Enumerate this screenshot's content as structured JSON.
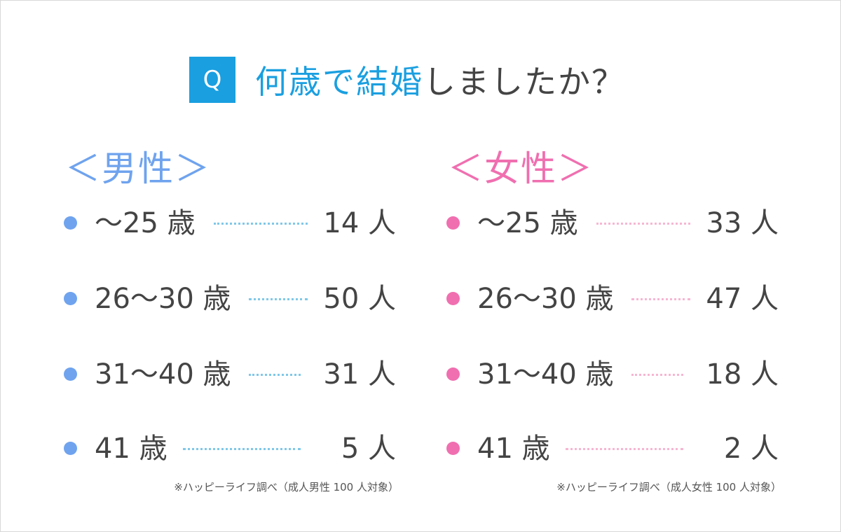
{
  "question": {
    "badge": "Q",
    "accent": "何歳で結婚",
    "rest": "しましたか？"
  },
  "colors": {
    "male": "#6fa3ee",
    "female": "#f06fb0",
    "question_accent": "#1a9fe0"
  },
  "male": {
    "header": "＜男性＞",
    "rows": [
      {
        "age": "〜25 歳",
        "count": "14 人"
      },
      {
        "age": "26〜30 歳",
        "count": "50 人"
      },
      {
        "age": "31〜40 歳",
        "count": "31 人"
      },
      {
        "age": "41 歳",
        "count": "5 人"
      }
    ],
    "note": "※ハッピーライフ調べ（成人男性 100 人対象）"
  },
  "female": {
    "header": "＜女性＞",
    "rows": [
      {
        "age": "〜25 歳",
        "count": "33 人"
      },
      {
        "age": "26〜30 歳",
        "count": "47 人"
      },
      {
        "age": "31〜40 歳",
        "count": "18 人"
      },
      {
        "age": "41 歳",
        "count": "2 人"
      }
    ],
    "note": "※ハッピーライフ調べ（成人女性 100 人対象）"
  }
}
